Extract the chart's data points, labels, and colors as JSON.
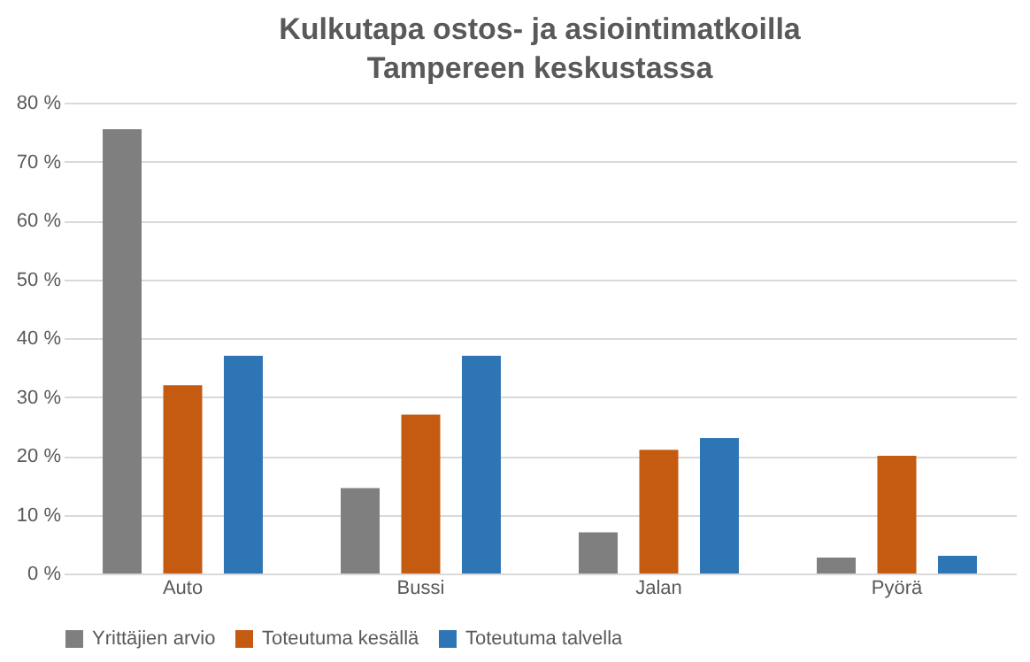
{
  "chart_data": {
    "type": "bar",
    "title": "Kulkutapa ostos- ja asiointimatkoilla Tampereen keskustassa",
    "categories": [
      "Auto",
      "Bussi",
      "Jalan",
      "Pyörä"
    ],
    "series": [
      {
        "name": "Yrittäjien arvio",
        "color": "#7f7f7f",
        "values": [
          75.5,
          14.5,
          7,
          2.7
        ]
      },
      {
        "name": "Toteutuma kesällä",
        "color": "#c55a11",
        "values": [
          32,
          27,
          21,
          20
        ]
      },
      {
        "name": "Toteutuma talvella",
        "color": "#2e75b6",
        "values": [
          37,
          37,
          23,
          3
        ]
      }
    ],
    "ylim": [
      0,
      80
    ],
    "yticks": [
      {
        "value": 0,
        "label": "0 %"
      },
      {
        "value": 10,
        "label": "10 %"
      },
      {
        "value": 20,
        "label": "20 %"
      },
      {
        "value": 30,
        "label": "30 %"
      },
      {
        "value": 40,
        "label": "40 %"
      },
      {
        "value": 50,
        "label": "50 %"
      },
      {
        "value": 60,
        "label": "60 %"
      },
      {
        "value": 70,
        "label": "70 %"
      },
      {
        "value": 80,
        "label": "80 %"
      }
    ],
    "grid": "y",
    "legend": "bottom"
  }
}
